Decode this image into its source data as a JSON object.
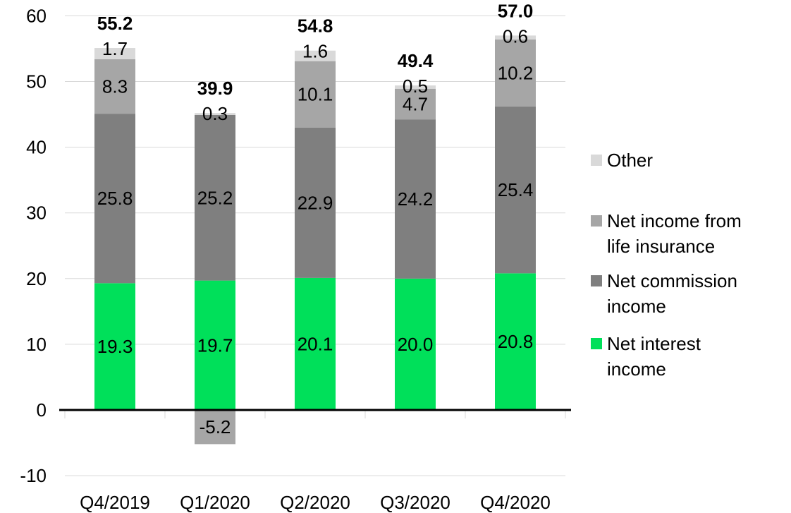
{
  "chart_data": {
    "type": "bar",
    "stacked": true,
    "categories": [
      "Q4/2019",
      "Q1/2020",
      "Q2/2020",
      "Q3/2020",
      "Q4/2020"
    ],
    "series": [
      {
        "name": "Net interest income",
        "color": "#00e05a",
        "values": [
          19.3,
          19.7,
          20.1,
          20.0,
          20.8
        ],
        "labels": [
          "19.3",
          "19.7",
          "20.1",
          "20.0",
          "20.8"
        ]
      },
      {
        "name": "Net commission income",
        "color": "#7f7f7f",
        "values": [
          25.8,
          25.2,
          22.9,
          24.2,
          25.4
        ],
        "labels": [
          "25.8",
          "25.2",
          "22.9",
          "24.2",
          "25.4"
        ]
      },
      {
        "name": "Net income from life insurance",
        "color": "#a6a6a6",
        "values": [
          8.3,
          -5.2,
          10.1,
          4.7,
          10.2
        ],
        "labels": [
          "8.3",
          "-5.2",
          "10.1",
          "4.7",
          "10.2"
        ]
      },
      {
        "name": "Other",
        "color": "#d9d9d9",
        "values": [
          1.7,
          0.3,
          1.6,
          0.5,
          0.6
        ],
        "labels": [
          "1.7",
          "0.3",
          "1.6",
          "0.5",
          "0.6"
        ]
      }
    ],
    "totals": [
      "55.2",
      "39.9",
      "54.8",
      "49.4",
      "57.0"
    ],
    "title": "",
    "xlabel": "",
    "ylabel": "",
    "ylim": [
      -10,
      60
    ],
    "yticks": [
      "-10",
      "0",
      "10",
      "20",
      "30",
      "40",
      "50",
      "60"
    ],
    "grid": true,
    "legend_position": "right"
  }
}
